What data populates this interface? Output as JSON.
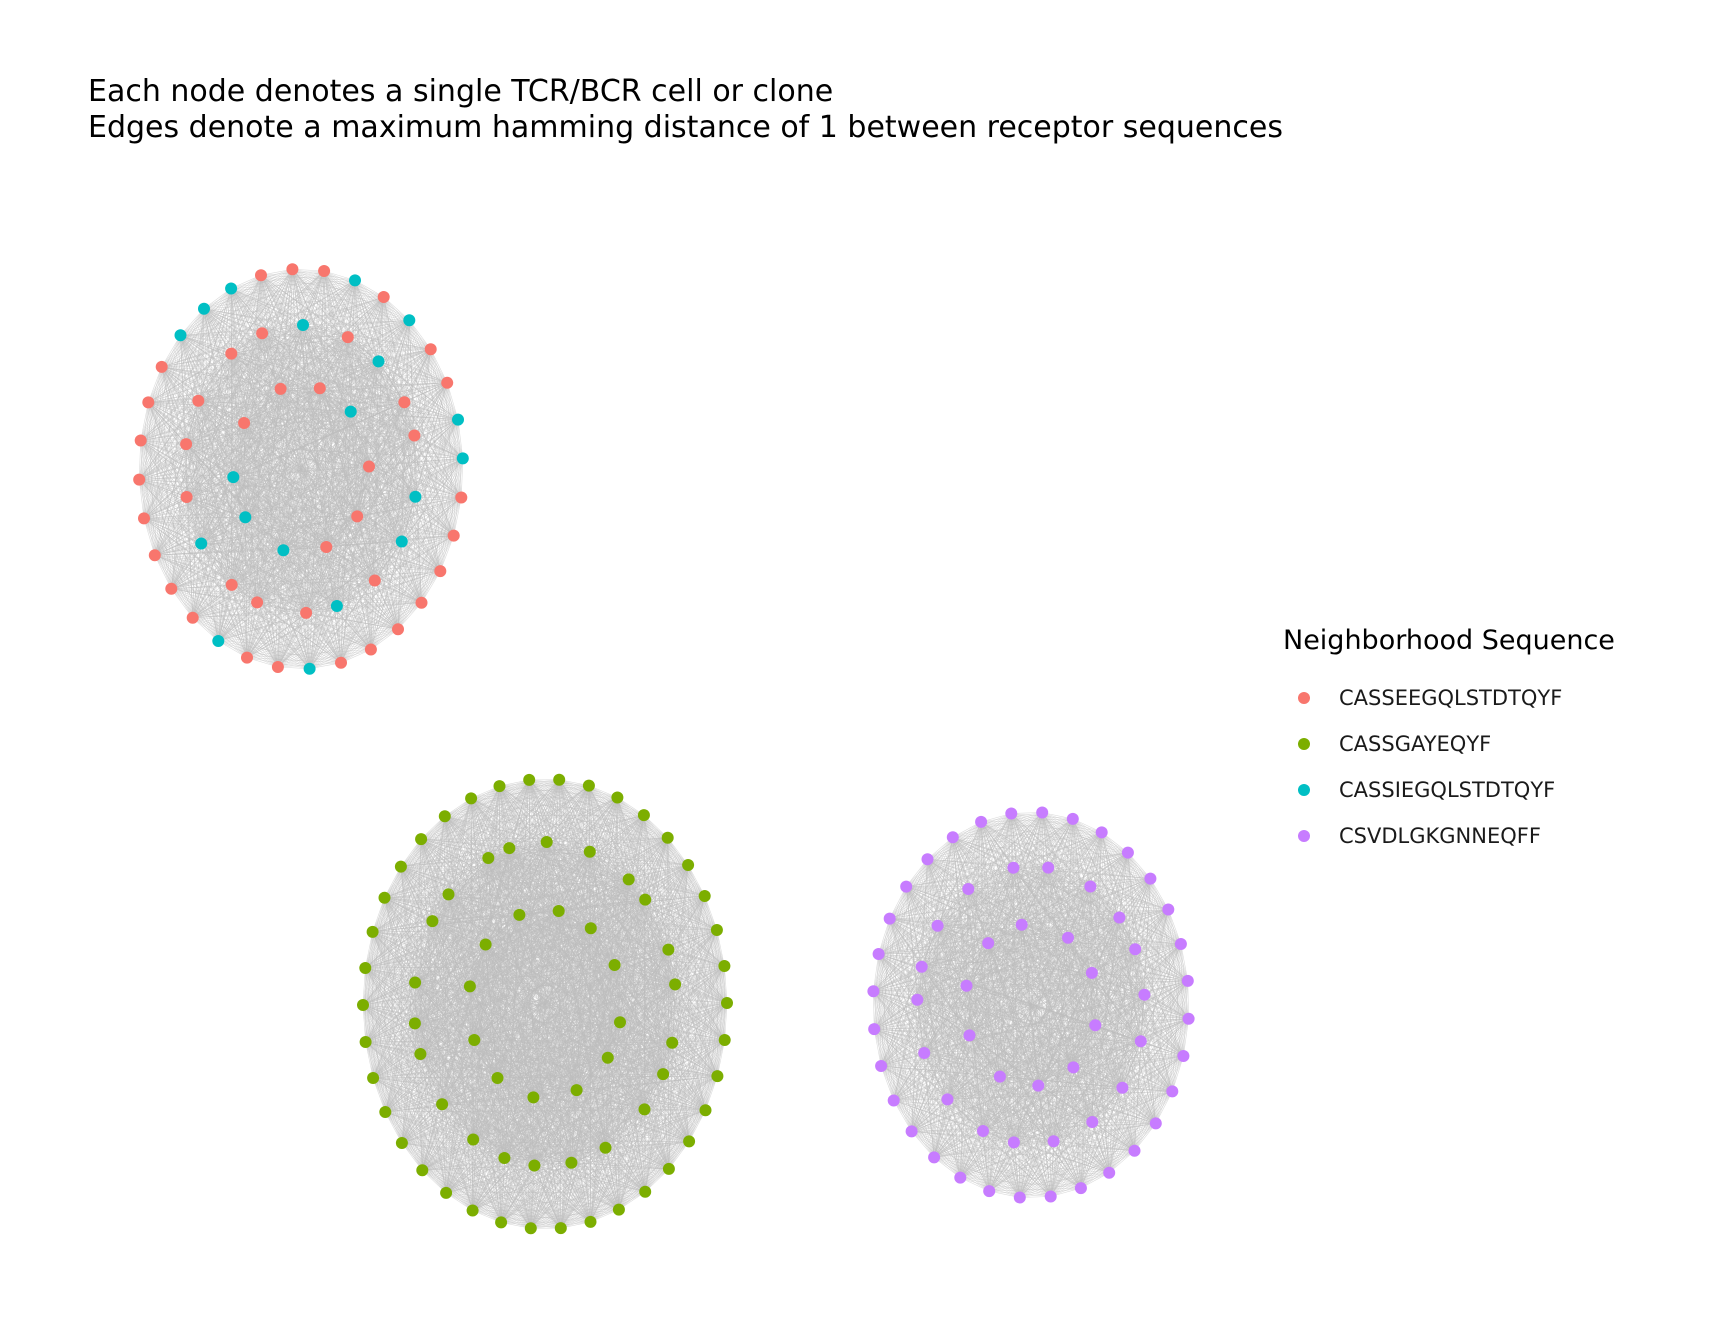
{
  "title": {
    "line1": "Each node denotes a single TCR/BCR cell or clone",
    "line2": "Edges denote a maximum hamming distance of 1 between receptor sequences"
  },
  "legend": {
    "title": "Neighborhood Sequence",
    "entries": [
      {
        "label": "CASSEEGQLSTDTQYF",
        "color": "#F8766D"
      },
      {
        "label": "CASSGAYEQYF",
        "color": "#7CAE00"
      },
      {
        "label": "CASSIEGQLSTDTQYF",
        "color": "#00BFC4"
      },
      {
        "label": "CSVDLGKGNNEQFF",
        "color": "#C77CFF"
      }
    ]
  },
  "edge_color": "#BEBEBE",
  "clusters": [
    {
      "name": "CASSEEGQLSTDTQYF",
      "note": "fully connected cluster of 60 nodes; 41 CASSEEGQLSTDTQYF and 19 CASSIEGQLSTDTQYF",
      "node_counts": {
        "CASSEEGQLSTDTQYF": 41,
        "CASSIEGQLSTDTQYF": 19
      }
    },
    {
      "name": "CASSGAYEQYF",
      "node_counts": {
        "CASSGAYEQYF": 72
      }
    },
    {
      "name": "CSVDLGKGNNEQFF",
      "node_counts": {
        "CSVDLGKGNNEQFF": 60
      }
    }
  ]
}
